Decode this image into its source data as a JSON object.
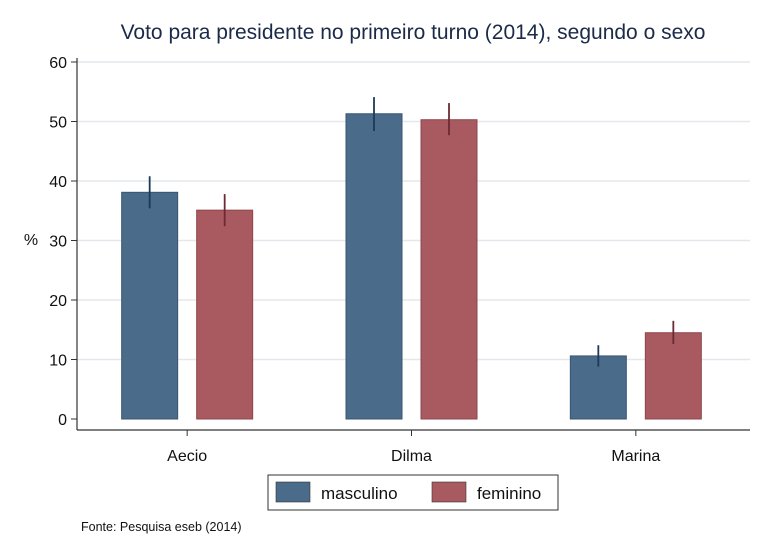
{
  "chart_data": {
    "type": "bar",
    "title": "Voto para presidente no primeiro turno (2014), segundo o sexo",
    "xlabel": "",
    "ylabel": "%",
    "ylim": [
      0,
      60
    ],
    "yticks": [
      0,
      10,
      20,
      30,
      40,
      50,
      60
    ],
    "ytick_labels": [
      "0",
      "10",
      "20",
      "30",
      "40",
      "50",
      "60"
    ],
    "grid": true,
    "categories": [
      "Aecio",
      "Dilma",
      "Marina"
    ],
    "series": [
      {
        "name": "masculino",
        "color": "#4a6b8a",
        "values": [
          38.1,
          51.3,
          10.6
        ],
        "ci_low": [
          35.4,
          48.4,
          8.8
        ],
        "ci_high": [
          40.8,
          54.1,
          12.4
        ]
      },
      {
        "name": "feminino",
        "color": "#a85a60",
        "values": [
          35.1,
          50.3,
          14.5
        ],
        "ci_low": [
          32.4,
          47.7,
          12.6
        ],
        "ci_high": [
          37.8,
          53.1,
          16.5
        ]
      }
    ],
    "legend_position": "bottom",
    "note": "Fonte: Pesquisa eseb (2014)"
  },
  "colors": {
    "title": "#1a2a48",
    "grid": "#e4e8ec",
    "axis": "#333333",
    "masc_err": "#1c3a5a",
    "fem_err": "#6e2a34"
  }
}
